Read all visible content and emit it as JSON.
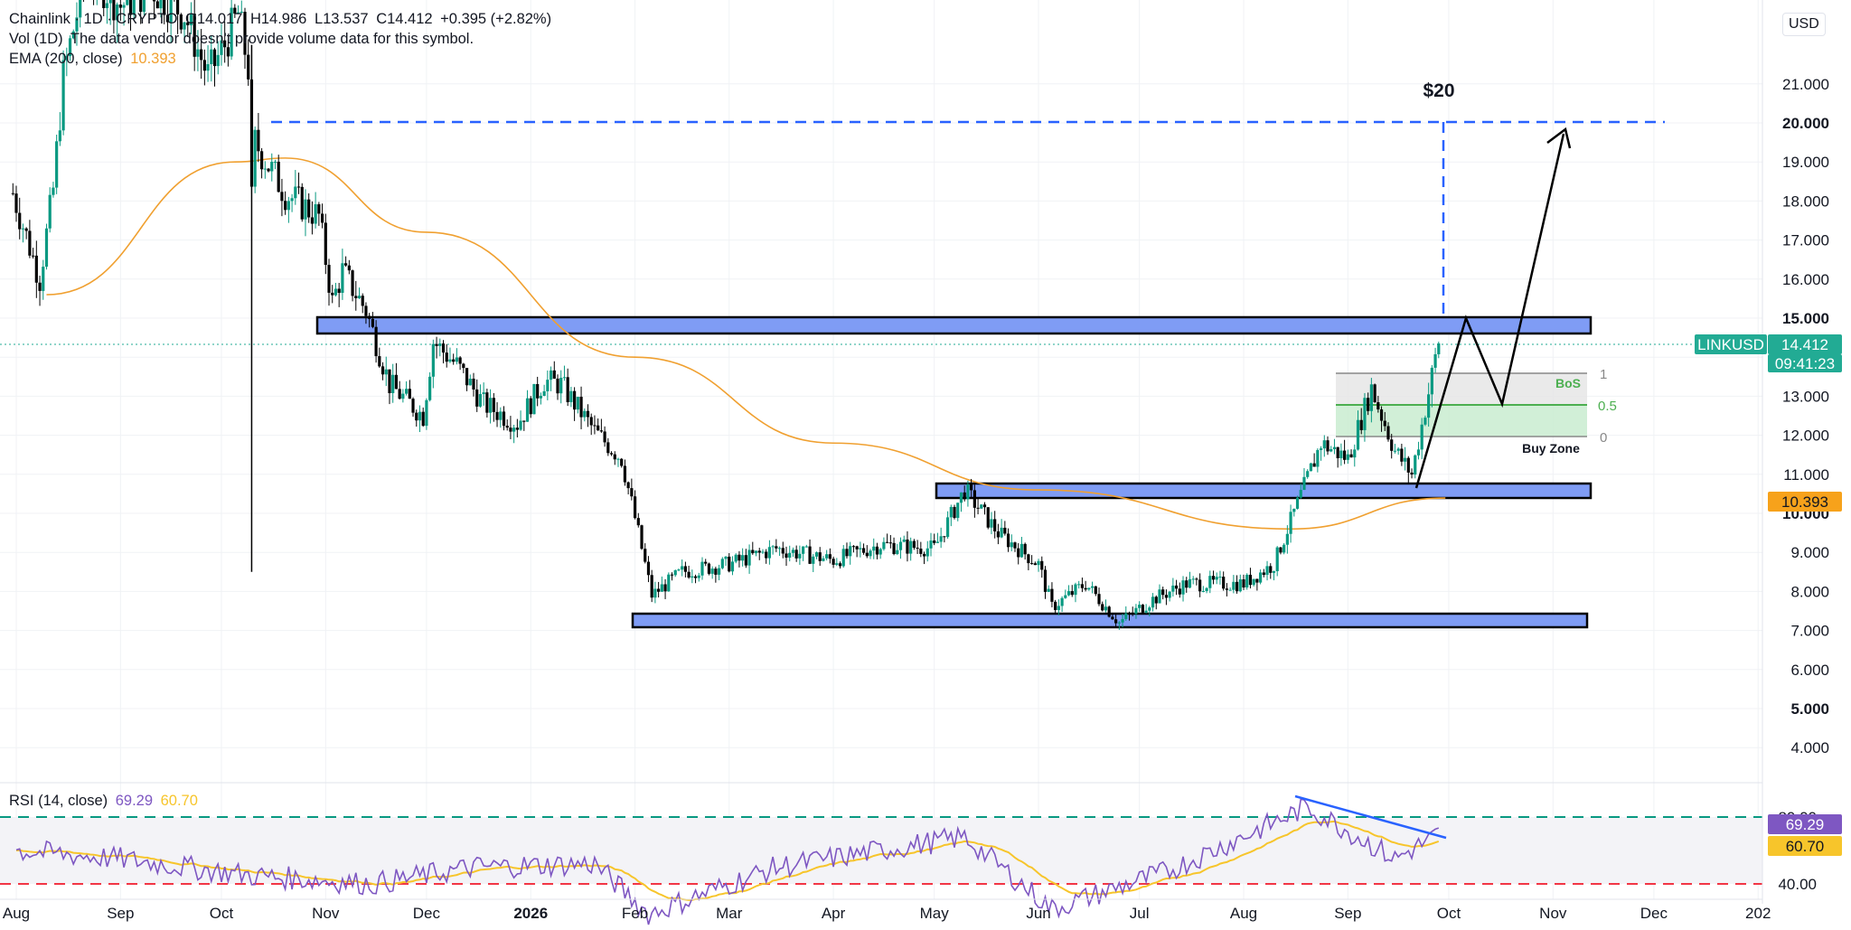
{
  "header": {
    "symbol": "Chainlink · 1D · CRYPTO",
    "open": "O14.017",
    "high": "H14.986",
    "low": "L13.537",
    "close": "C14.412",
    "change": "+0.395 (+2.82%)",
    "vol_label": "Vol (1D)",
    "vol_text": "The data vendor doesn't provide volume data for this symbol.",
    "ema_label": "EMA (200, close)",
    "ema_value": "10.393"
  },
  "price_axis": {
    "currency": "USD",
    "ticks": [
      "21.000",
      "20.000",
      "19.000",
      "18.000",
      "17.000",
      "16.000",
      "15.000",
      "14.000",
      "13.000",
      "12.000",
      "11.000",
      "10.000",
      "9.000",
      "8.000",
      "7.000",
      "6.000",
      "5.000",
      "4.000"
    ],
    "bold_ticks": [
      "20.000",
      "15.000",
      "10.000",
      "5.000"
    ]
  },
  "labels": {
    "symbol_tag": "LINKUSD",
    "price_tag": "14.412",
    "countdown": "09:41:23",
    "ema_tag": "10.393",
    "target": "$20",
    "bos": "BoS",
    "buy_zone": "Buy Zone",
    "fib_1": "1",
    "fib_05": "0.5",
    "fib_0": "0"
  },
  "rsi": {
    "label": "RSI (14, close)",
    "value": "69.29",
    "ma_value": "60.70",
    "ticks": [
      "80.00",
      "40.00"
    ],
    "rsi_tag": "69.29",
    "ma_tag": "60.70"
  },
  "time_axis": {
    "ticks": [
      "Aug",
      "Sep",
      "Oct",
      "Nov",
      "Dec",
      "2026",
      "Feb",
      "Mar",
      "Apr",
      "May",
      "Jun",
      "Jul",
      "Aug",
      "Sep",
      "Oct",
      "Nov",
      "Dec",
      "202"
    ]
  },
  "colors": {
    "up": "#089981",
    "down": "#000000",
    "ema": "#f0a030",
    "zone_fill": "#7f9cf5",
    "target_line": "#2962ff",
    "rsi_line": "#7e57c2",
    "rsi_ma": "#f7c52b",
    "rsi_upper": "#089981",
    "rsi_lower": "#f23645",
    "price_tag": "#22ab94",
    "ema_tag": "#f7a21b"
  },
  "chart_data": {
    "type": "candlestick",
    "price_unit": "USD",
    "ylim": [
      3.6,
      22
    ],
    "key_levels": {
      "target": 20.0,
      "resistance_zone": [
        14.75,
        15.1
      ],
      "mid_zone": [
        10.45,
        10.85
      ],
      "support_zone": [
        7.15,
        7.5
      ],
      "fib_1": 13.6,
      "fib_05": 12.85,
      "fib_0": 12.05
    },
    "close_series": [
      {
        "date": "2025-07-31",
        "close": 18.2
      },
      {
        "date": "2025-08-08",
        "close": 16.0
      },
      {
        "date": "2025-08-12",
        "close": 18.3
      },
      {
        "date": "2025-08-15",
        "close": 21.2
      },
      {
        "date": "2025-08-22",
        "close": 24.0
      },
      {
        "date": "2025-09-01",
        "close": 23.0
      },
      {
        "date": "2025-09-10",
        "close": 23.5
      },
      {
        "date": "2025-09-20",
        "close": 22.8
      },
      {
        "date": "2025-09-27",
        "close": 21.2
      },
      {
        "date": "2025-10-02",
        "close": 22.0
      },
      {
        "date": "2025-10-06",
        "close": 22.8
      },
      {
        "date": "2025-10-09",
        "close": 21.4
      },
      {
        "date": "2025-10-10",
        "close": 18.0
      },
      {
        "date": "2025-10-11",
        "close": 19.5
      },
      {
        "date": "2025-10-20",
        "close": 18.2
      },
      {
        "date": "2025-10-30",
        "close": 17.6
      },
      {
        "date": "2025-11-03",
        "close": 15.4
      },
      {
        "date": "2025-11-06",
        "close": 16.2
      },
      {
        "date": "2025-11-13",
        "close": 15.2
      },
      {
        "date": "2025-11-20",
        "close": 13.3
      },
      {
        "date": "2025-11-30",
        "close": 12.5
      },
      {
        "date": "2025-12-03",
        "close": 14.4
      },
      {
        "date": "2025-12-10",
        "close": 13.8
      },
      {
        "date": "2025-12-18",
        "close": 12.8
      },
      {
        "date": "2025-12-28",
        "close": 12.3
      },
      {
        "date": "2026-01-05",
        "close": 13.4
      },
      {
        "date": "2026-01-10",
        "close": 13.3
      },
      {
        "date": "2026-01-20",
        "close": 12.1
      },
      {
        "date": "2026-01-28",
        "close": 11.4
      },
      {
        "date": "2026-02-02",
        "close": 9.5
      },
      {
        "date": "2026-02-06",
        "close": 7.9
      },
      {
        "date": "2026-02-15",
        "close": 8.5
      },
      {
        "date": "2026-03-01",
        "close": 8.7
      },
      {
        "date": "2026-03-15",
        "close": 9.1
      },
      {
        "date": "2026-04-01",
        "close": 8.8
      },
      {
        "date": "2026-04-15",
        "close": 9.2
      },
      {
        "date": "2026-05-01",
        "close": 9.1
      },
      {
        "date": "2026-05-10",
        "close": 10.6
      },
      {
        "date": "2026-05-20",
        "close": 9.5
      },
      {
        "date": "2026-06-01",
        "close": 8.7
      },
      {
        "date": "2026-06-05",
        "close": 7.6
      },
      {
        "date": "2026-06-15",
        "close": 8.2
      },
      {
        "date": "2026-06-25",
        "close": 7.2
      },
      {
        "date": "2026-07-05",
        "close": 7.8
      },
      {
        "date": "2026-07-15",
        "close": 8.2
      },
      {
        "date": "2026-08-01",
        "close": 8.2
      },
      {
        "date": "2026-08-10",
        "close": 8.7
      },
      {
        "date": "2026-08-20",
        "close": 10.9
      },
      {
        "date": "2026-08-24",
        "close": 11.8
      },
      {
        "date": "2026-09-01",
        "close": 11.4
      },
      {
        "date": "2026-09-08",
        "close": 13.2
      },
      {
        "date": "2026-09-15",
        "close": 11.6
      },
      {
        "date": "2026-09-20",
        "close": 11.0
      },
      {
        "date": "2026-09-25",
        "close": 13.1
      },
      {
        "date": "2026-09-28",
        "close": 14.412
      }
    ],
    "ema200": [
      {
        "date": "2025-08-10",
        "value": 15.6
      },
      {
        "date": "2025-10-05",
        "value": 19.0
      },
      {
        "date": "2025-10-20",
        "value": 19.1
      },
      {
        "date": "2025-12-01",
        "value": 17.2
      },
      {
        "date": "2026-02-01",
        "value": 14.0
      },
      {
        "date": "2026-04-01",
        "value": 11.8
      },
      {
        "date": "2026-06-01",
        "value": 10.6
      },
      {
        "date": "2026-08-15",
        "value": 9.6
      },
      {
        "date": "2026-09-30",
        "value": 10.393
      }
    ],
    "rsi_series": [
      {
        "date": "2025-08-01",
        "value": 60
      },
      {
        "date": "2025-09-01",
        "value": 55
      },
      {
        "date": "2025-10-10",
        "value": 45
      },
      {
        "date": "2025-11-15",
        "value": 40
      },
      {
        "date": "2025-12-15",
        "value": 50
      },
      {
        "date": "2026-01-20",
        "value": 52
      },
      {
        "date": "2026-02-05",
        "value": 22
      },
      {
        "date": "2026-03-15",
        "value": 50
      },
      {
        "date": "2026-05-10",
        "value": 68
      },
      {
        "date": "2026-06-05",
        "value": 25
      },
      {
        "date": "2026-07-10",
        "value": 48
      },
      {
        "date": "2026-08-20",
        "value": 86
      },
      {
        "date": "2026-09-15",
        "value": 55
      },
      {
        "date": "2026-09-28",
        "value": 69.29
      }
    ]
  }
}
